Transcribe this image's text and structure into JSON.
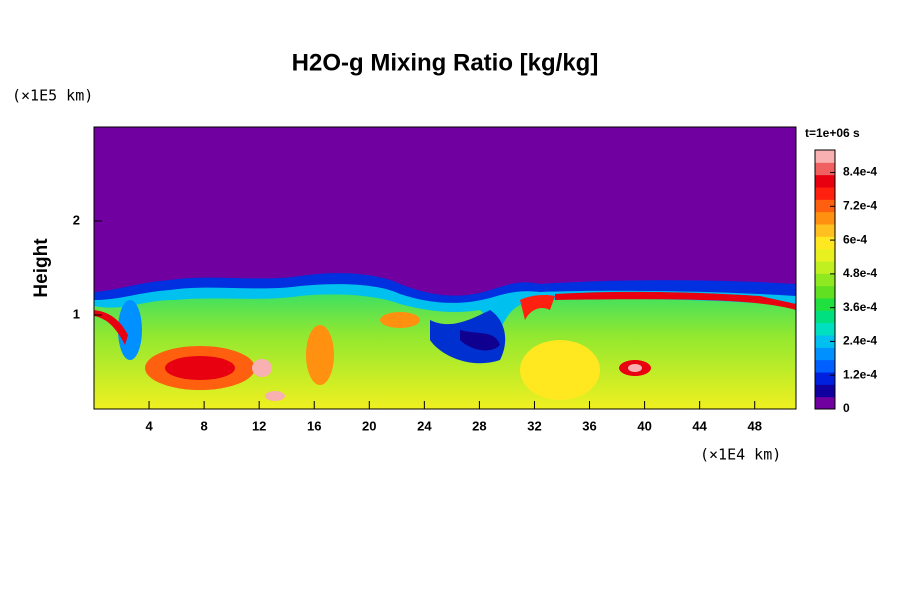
{
  "chart_data": {
    "type": "heatmap",
    "title": "H2O-g Mixing Ratio [kg/kg]",
    "x_unit": "(×1E4 km)",
    "y_unit": "(×1E5 km)",
    "ylabel": "Height",
    "time_label": "t=1e+06 s",
    "xlim": [
      0,
      51
    ],
    "xticks": [
      4,
      8,
      12,
      16,
      20,
      24,
      28,
      32,
      36,
      40,
      44,
      48
    ],
    "ylim": [
      0,
      3
    ],
    "yticks": [
      1,
      2
    ],
    "clim": [
      0,
      0.00092
    ],
    "cticks": [
      0,
      {
        "value": 0.00012,
        "label": "1.2e-4"
      },
      {
        "value": 0.00024,
        "label": "2.4e-4"
      },
      {
        "value": 0.00036,
        "label": "3.6e-4"
      },
      {
        "value": 0.00048,
        "label": "4.8e-4"
      },
      {
        "value": 0.0006,
        "label": "6e-4"
      },
      {
        "value": 0.00072,
        "label": "7.2e-4"
      },
      {
        "value": 0.00084,
        "label": "8.4e-4"
      }
    ],
    "colormap": [
      "#7000a0",
      "#1000a0",
      "#0020e0",
      "#0060ff",
      "#0090ff",
      "#00c0f0",
      "#00e0c0",
      "#00e080",
      "#20e040",
      "#60e020",
      "#90e820",
      "#c0f020",
      "#e8f020",
      "#ffe820",
      "#ffc020",
      "#ff9010",
      "#ff6010",
      "#ff2010",
      "#e80010",
      "#f06060",
      "#f8b0b0"
    ]
  }
}
